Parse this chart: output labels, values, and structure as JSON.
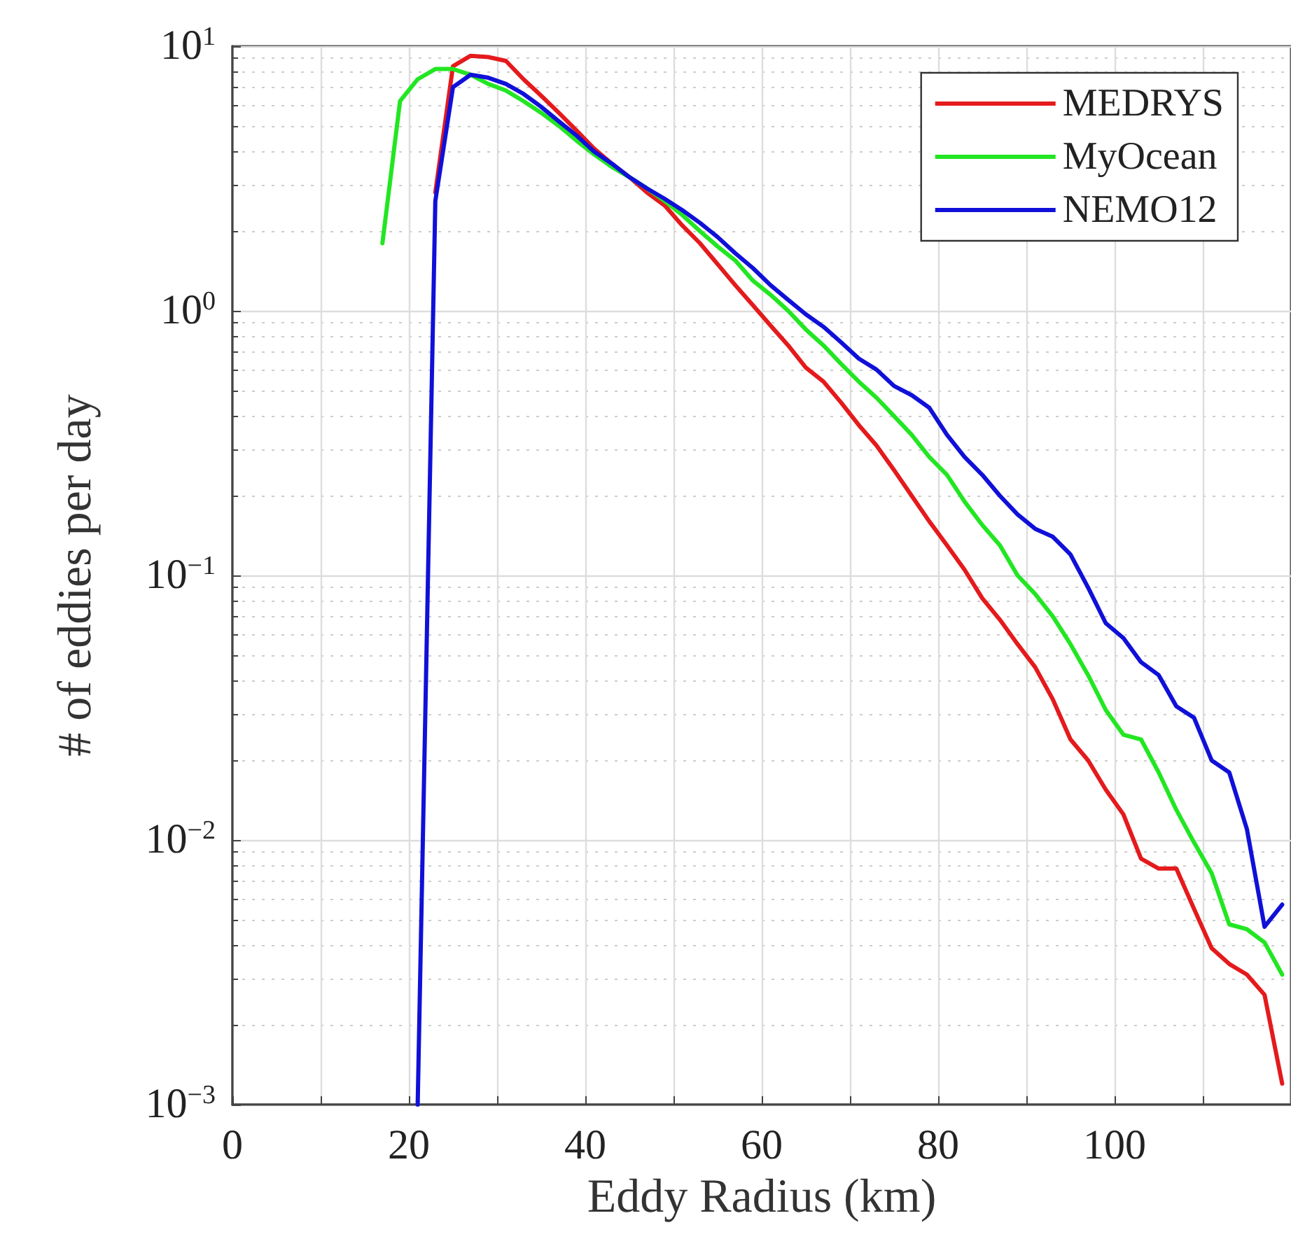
{
  "chart_data": {
    "type": "line",
    "xlabel": "Eddy Radius (km)",
    "ylabel": "# of eddies per day",
    "log": "y",
    "grid": true,
    "legend": "top right",
    "marker": "none",
    "line_style": "solid",
    "xlim": [
      0,
      120
    ],
    "xticks": [
      0,
      {
        "value": 10,
        "label": null
      },
      20,
      {
        "value": 30,
        "label": null
      },
      40,
      {
        "value": 50,
        "label": null
      },
      60,
      {
        "value": 70,
        "label": null
      },
      80,
      {
        "value": 90,
        "label": null
      },
      100,
      {
        "value": 110,
        "label": null
      },
      {
        "value": 120,
        "label": null
      }
    ],
    "ylim": [
      0.001,
      10
    ],
    "yticks": [
      {
        "value": 0.001,
        "label": "10$^{−3}$"
      },
      {
        "value": 0.01,
        "label": "10$^{−2}$"
      },
      {
        "value": 0.1,
        "label": "10$^{−1}$"
      },
      {
        "value": 1,
        "label": "10$^{0}$"
      },
      {
        "value": 10,
        "label": "10$^{1}$"
      }
    ],
    "series": [
      {
        "name": "MEDRYS",
        "color": "#e41a1c",
        "x": [
          23,
          25,
          27,
          29,
          31,
          33,
          35,
          37,
          39,
          41,
          43,
          45,
          47,
          49,
          51,
          53,
          55,
          57,
          59,
          61,
          63,
          65,
          67,
          69,
          71,
          73,
          75,
          77,
          79,
          81,
          83,
          85,
          87,
          89,
          91,
          93,
          95,
          97,
          99,
          101,
          103,
          105,
          107,
          109,
          111,
          113,
          115,
          117,
          119
        ],
        "values": [
          2.8,
          8.4,
          9.2,
          9.1,
          8.8,
          7.5,
          6.5,
          5.6,
          4.8,
          4.1,
          3.6,
          3.2,
          2.8,
          2.5,
          2.1,
          1.8,
          1.5,
          1.25,
          1.05,
          0.88,
          0.74,
          0.61,
          0.54,
          0.45,
          0.37,
          0.31,
          0.25,
          0.2,
          0.16,
          0.13,
          0.105,
          0.082,
          0.068,
          0.055,
          0.045,
          0.034,
          0.024,
          0.02,
          0.0155,
          0.0125,
          0.0085,
          0.0078,
          0.0078,
          0.0055,
          0.0039,
          0.0034,
          0.0031,
          0.0026,
          0.0012
        ]
      },
      {
        "name": "MyOcean",
        "color": "#22e622",
        "x": [
          17,
          19,
          21,
          23,
          25,
          27,
          29,
          31,
          33,
          35,
          37,
          39,
          41,
          43,
          45,
          47,
          49,
          51,
          53,
          55,
          57,
          59,
          61,
          63,
          65,
          67,
          69,
          71,
          73,
          75,
          77,
          79,
          81,
          83,
          85,
          87,
          89,
          91,
          93,
          95,
          97,
          99,
          101,
          103,
          105,
          107,
          109,
          111,
          113,
          115,
          117,
          119
        ],
        "values": [
          1.8,
          6.2,
          7.5,
          8.2,
          8.2,
          7.8,
          7.2,
          6.8,
          6.2,
          5.6,
          5.0,
          4.4,
          3.9,
          3.5,
          3.2,
          2.9,
          2.6,
          2.3,
          2.0,
          1.75,
          1.55,
          1.3,
          1.15,
          1.0,
          0.85,
          0.74,
          0.63,
          0.54,
          0.47,
          0.4,
          0.34,
          0.28,
          0.24,
          0.19,
          0.155,
          0.13,
          0.1,
          0.085,
          0.07,
          0.055,
          0.042,
          0.031,
          0.025,
          0.024,
          0.018,
          0.013,
          0.0098,
          0.0075,
          0.0048,
          0.0046,
          0.0041,
          0.0031
        ]
      },
      {
        "name": "NEMO12",
        "color": "#1010d8",
        "x": [
          21,
          23,
          25,
          27,
          29,
          31,
          33,
          35,
          37,
          39,
          41,
          43,
          45,
          47,
          49,
          51,
          53,
          55,
          57,
          59,
          61,
          63,
          65,
          67,
          69,
          71,
          73,
          75,
          77,
          79,
          81,
          83,
          85,
          87,
          89,
          91,
          93,
          95,
          97,
          99,
          101,
          103,
          105,
          107,
          109,
          111,
          113,
          115,
          117,
          119
        ],
        "values": [
          0.001,
          2.6,
          7.0,
          7.8,
          7.6,
          7.2,
          6.6,
          5.9,
          5.2,
          4.6,
          4.0,
          3.6,
          3.2,
          2.9,
          2.65,
          2.4,
          2.15,
          1.9,
          1.65,
          1.45,
          1.25,
          1.1,
          0.97,
          0.87,
          0.76,
          0.66,
          0.6,
          0.52,
          0.48,
          0.43,
          0.34,
          0.28,
          0.24,
          0.2,
          0.17,
          0.15,
          0.14,
          0.12,
          0.09,
          0.066,
          0.058,
          0.047,
          0.042,
          0.032,
          0.029,
          0.02,
          0.018,
          0.011,
          0.0047,
          0.0057
        ]
      }
    ]
  }
}
